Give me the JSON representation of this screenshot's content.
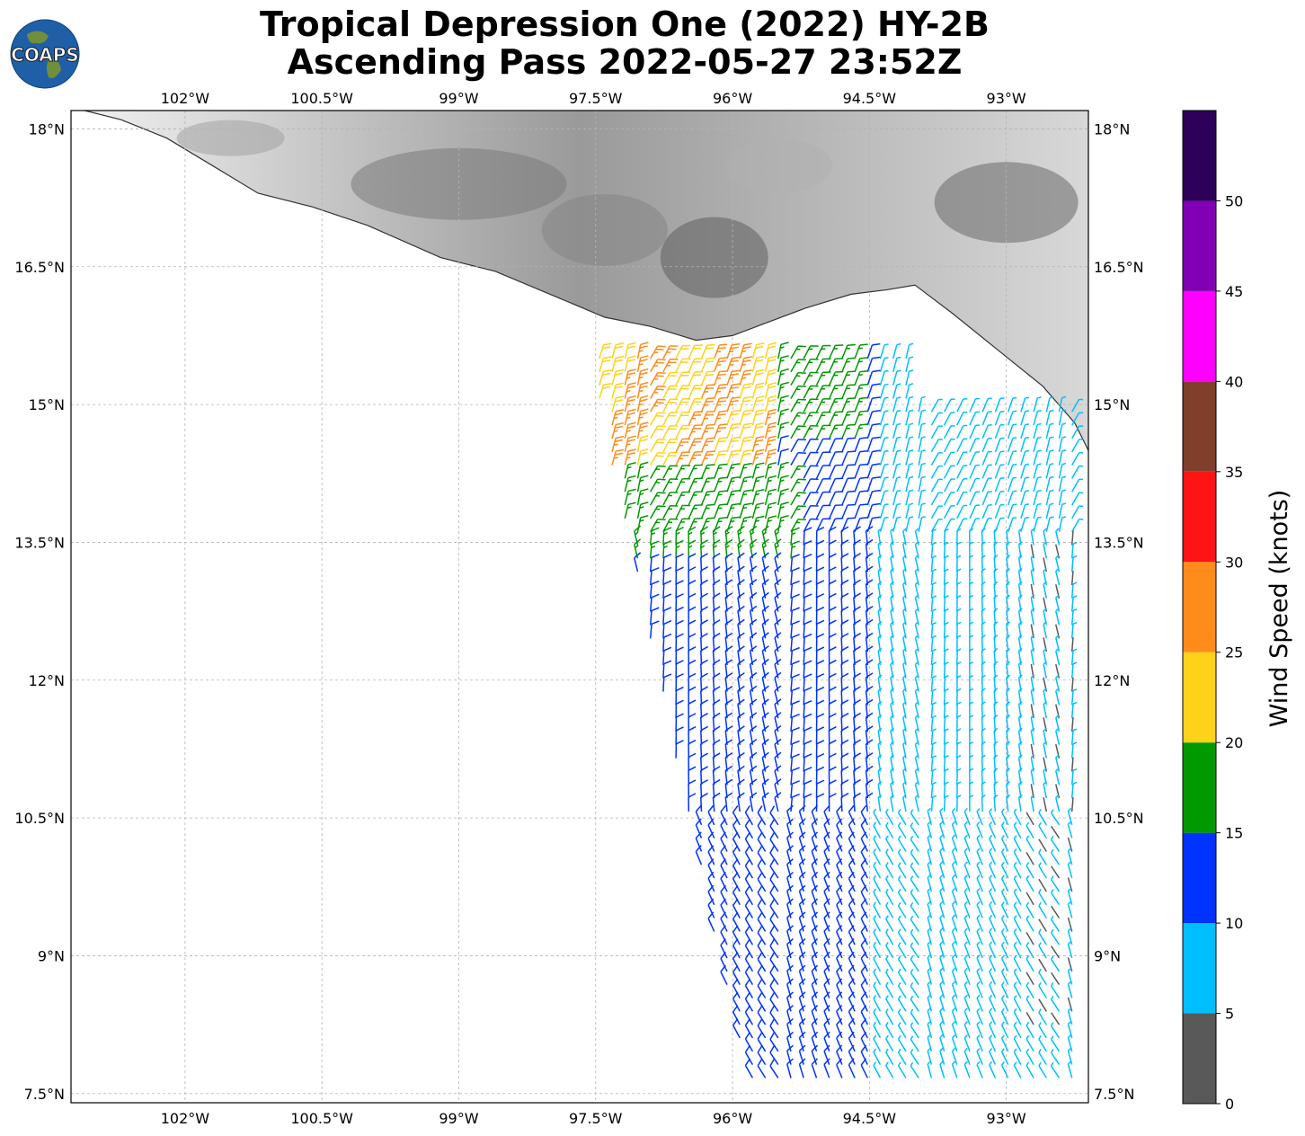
{
  "title_line1": "Tropical Depression One (2022) HY-2B",
  "title_line2": "Ascending Pass 2022-05-27 23:52Z",
  "logo_text": "COAPS",
  "lon_ticks": [
    "102°W",
    "100.5°W",
    "99°W",
    "97.5°W",
    "96°W",
    "94.5°W",
    "93°W"
  ],
  "lat_ticks": [
    "18°N",
    "16.5°N",
    "15°N",
    "13.5°N",
    "12°N",
    "10.5°N",
    "9°N",
    "7.5°N"
  ],
  "colorbar": {
    "label": "Wind Speed (knots)",
    "tick_labels": [
      "0",
      "5",
      "10",
      "15",
      "20",
      "25",
      "30",
      "35",
      "40",
      "45",
      "50"
    ],
    "bins": [
      {
        "min": 0,
        "max": 5,
        "color": "#595959"
      },
      {
        "min": 5,
        "max": 10,
        "color": "#00bfff"
      },
      {
        "min": 10,
        "max": 15,
        "color": "#0033ff"
      },
      {
        "min": 15,
        "max": 20,
        "color": "#009900"
      },
      {
        "min": 20,
        "max": 25,
        "color": "#ffd21a"
      },
      {
        "min": 25,
        "max": 30,
        "color": "#ff8c1a"
      },
      {
        "min": 30,
        "max": 35,
        "color": "#ff1414"
      },
      {
        "min": 35,
        "max": 40,
        "color": "#7f3f2a"
      },
      {
        "min": 40,
        "max": 45,
        "color": "#ff00ff"
      },
      {
        "min": 45,
        "max": 50,
        "color": "#8000b3"
      },
      {
        "min": 50,
        "max": 55,
        "color": "#2d0059"
      }
    ]
  },
  "map": {
    "lon_range_west": [
      103.25,
      92.1
    ],
    "lat_range_north": [
      7.4,
      18.2
    ],
    "gridlines": true,
    "background": "topography (grayscale) over land, white ocean",
    "coastline_lon_lat": [
      [
        103.1,
        18.2
      ],
      [
        102.7,
        18.1
      ],
      [
        102.2,
        17.9
      ],
      [
        101.7,
        17.6
      ],
      [
        101.2,
        17.3
      ],
      [
        100.6,
        17.15
      ],
      [
        100.0,
        16.95
      ],
      [
        99.2,
        16.6
      ],
      [
        98.6,
        16.45
      ],
      [
        98.0,
        16.2
      ],
      [
        97.4,
        15.95
      ],
      [
        96.9,
        15.85
      ],
      [
        96.4,
        15.7
      ],
      [
        96.0,
        15.75
      ],
      [
        95.6,
        15.9
      ],
      [
        95.2,
        16.05
      ],
      [
        94.7,
        16.2
      ],
      [
        94.3,
        16.25
      ],
      [
        94.0,
        16.3
      ],
      [
        93.6,
        16.0
      ],
      [
        93.1,
        15.6
      ],
      [
        92.6,
        15.2
      ],
      [
        92.25,
        14.8
      ],
      [
        92.1,
        14.5
      ]
    ]
  },
  "wind_barbs": {
    "description": "Wind barbs along the HY-2B swath; color encodes speed bin",
    "regions": [
      {
        "area": "near Gulf of Tehuantepec coast (15-15.5°N, 97.5-95°W)",
        "speed_kt": "20-30"
      },
      {
        "area": "13.2-13.8°N, 97-95°W",
        "speed_kt": "15-20"
      },
      {
        "area": "swath interior 8-13°N, 96.5-94.5°W",
        "speed_kt": "10-15"
      },
      {
        "area": "eastern swath 8-15°N, 94.5-92.1°W",
        "speed_kt": "5-10"
      },
      {
        "area": "eastern edge 8-13°N near 92.5°W",
        "speed_kt": "0-5"
      }
    ]
  }
}
